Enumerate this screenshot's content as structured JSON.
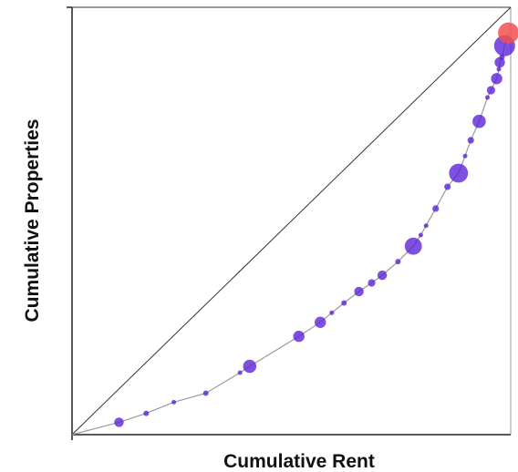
{
  "chart_data": {
    "type": "scatter",
    "title": "",
    "xlabel": "Cumulative Rent",
    "ylabel": "Cumulative Properties",
    "xlim": [
      0,
      1
    ],
    "ylim": [
      0,
      1
    ],
    "grid": false,
    "legend": "none",
    "reference_line": {
      "from": [
        0,
        0
      ],
      "to": [
        1,
        1
      ]
    },
    "series": [
      {
        "color": "#5a1fd6",
        "points": [
          {
            "x": 0.107,
            "y": 0.029,
            "size": 3
          },
          {
            "x": 0.169,
            "y": 0.05,
            "size": 1
          },
          {
            "x": 0.232,
            "y": 0.076,
            "size": 0.5
          },
          {
            "x": 0.305,
            "y": 0.097,
            "size": 1
          },
          {
            "x": 0.383,
            "y": 0.145,
            "size": 0.5
          },
          {
            "x": 0.405,
            "y": 0.16,
            "size": 5
          },
          {
            "x": 0.517,
            "y": 0.23,
            "size": 4
          },
          {
            "x": 0.566,
            "y": 0.263,
            "size": 4
          },
          {
            "x": 0.592,
            "y": 0.285,
            "size": 0.5
          },
          {
            "x": 0.62,
            "y": 0.308,
            "size": 1
          },
          {
            "x": 0.654,
            "y": 0.335,
            "size": 3
          },
          {
            "x": 0.683,
            "y": 0.355,
            "size": 2
          },
          {
            "x": 0.707,
            "y": 0.373,
            "size": 3
          },
          {
            "x": 0.743,
            "y": 0.405,
            "size": 1
          },
          {
            "x": 0.778,
            "y": 0.441,
            "size": 7
          },
          {
            "x": 0.795,
            "y": 0.467,
            "size": 0.5
          },
          {
            "x": 0.807,
            "y": 0.489,
            "size": 0.5
          },
          {
            "x": 0.829,
            "y": 0.529,
            "size": 1.5
          },
          {
            "x": 0.856,
            "y": 0.58,
            "size": 1.5
          },
          {
            "x": 0.881,
            "y": 0.612,
            "size": 8
          },
          {
            "x": 0.896,
            "y": 0.652,
            "size": 0.5
          },
          {
            "x": 0.909,
            "y": 0.689,
            "size": 1.5
          },
          {
            "x": 0.928,
            "y": 0.733,
            "size": 5
          },
          {
            "x": 0.947,
            "y": 0.789,
            "size": 0.5
          },
          {
            "x": 0.955,
            "y": 0.806,
            "size": 2.5
          },
          {
            "x": 0.968,
            "y": 0.833,
            "size": 4
          },
          {
            "x": 0.973,
            "y": 0.855,
            "size": 0.5
          },
          {
            "x": 0.975,
            "y": 0.871,
            "size": 3.5
          },
          {
            "x": 0.98,
            "y": 0.883,
            "size": 1
          },
          {
            "x": 0.986,
            "y": 0.91,
            "size": 9
          }
        ]
      },
      {
        "color": "#f05050",
        "points": [
          {
            "x": 0.995,
            "y": 0.94,
            "size": 9
          }
        ]
      }
    ]
  }
}
